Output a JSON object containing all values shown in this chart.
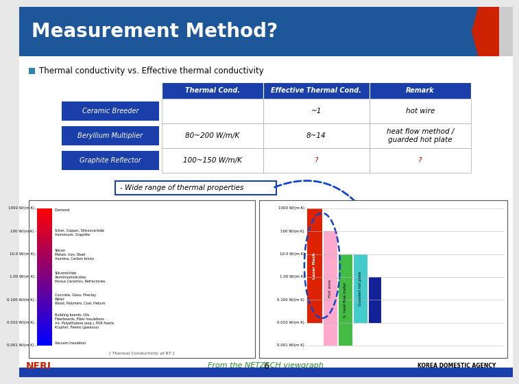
{
  "title": "Measurement Method?",
  "title_bg": "#1e5799",
  "title_color": "white",
  "subtitle": "Thermal conductivity vs. Effective thermal conductivity",
  "subtitle_bullet_color": "#2e86ab",
  "header_bg": "#1a3faa",
  "header_color": "white",
  "headers": [
    "Thermal Cond.",
    "Effective Thermal Cond.",
    "Remark"
  ],
  "row_labels": [
    "Ceramic Breeder",
    "Beryllium Multiplier",
    "Graphite Reflector"
  ],
  "row_label_bg": "#1a3faa",
  "row_label_color": "white",
  "thermal_cond": [
    "",
    "80~200 W/m/K",
    "100~150 W/m/K"
  ],
  "effective_thermal_cond": [
    "~1",
    "8~14",
    "?"
  ],
  "effective_color": [
    "black",
    "black",
    "#cc0000"
  ],
  "remark": [
    "hot wire",
    "heat flow method /\nguarded hot plate",
    "?"
  ],
  "remark_color": [
    "black",
    "black",
    "#cc0000"
  ],
  "note_text": "- Wide range of thermal properties",
  "note_bg": "white",
  "note_border": "#1a3faa",
  "from_text": "From the NETZSCH viewgraph",
  "from_color": "#2a8a2a",
  "page_num": "6",
  "bg_color": "white",
  "slide_bg": "#e8e8e8",
  "corner_red": "#cc2200",
  "bottom_bar_color": "#1a3faa",
  "nfri_color": "#cc2200",
  "left_labels": [
    "1000 W/(m·K)",
    "100 W/(m·K)",
    "10.0 W/(m K)",
    "1.00 W/(m K)",
    "0.100 W/(m K)",
    "0.010 W/(m K)",
    "0.001 W/(m K)"
  ],
  "right_labels": [
    "1000 W/(m·K)",
    "100 W/(m·K)",
    "10.0 W/(m K)",
    "1.00 W/(m K)",
    "0.100 W/(m K)",
    "0.010 W/(m K)",
    "0.001 W/(m K)"
  ],
  "materials": [
    "Diamond",
    "Silver, Copper, Siliconcarbide\nAluminium, Graphite",
    "Silicon\nMetals, Iron, Steel\nAlumina, Carbon bricks",
    "Siliconnitride\nAluminiumsilicates\nPorous Ceramics, Refractories",
    "Concrete, Glass, Fireclay\nWater\nWood, Polymers, Coal, Helium",
    "Building boards, Oils\nFiberboards, Fiber Insulations\nAir, Polyethylene (exp.), PUR foams\nKrypton, Freons (gaseous)",
    "Vacuum Insulation"
  ],
  "lf_color": "#dd2200",
  "hw_color": "#ffaacc",
  "gm_color": "#44bb44",
  "ghp_color": "#44cccc",
  "db_color": "#112299",
  "ellipse_color": "#1144cc"
}
